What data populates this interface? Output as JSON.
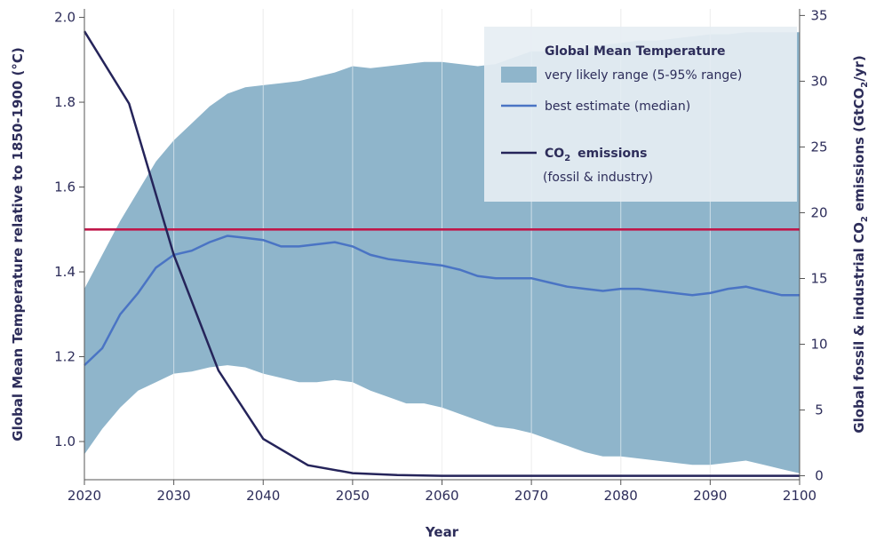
{
  "chart_data": {
    "type": "line",
    "xlabel": "Year",
    "ylabel": "Global Mean Temperature relative to 1850-1900 (°C)",
    "ylabel_right": {
      "base": "Global fossil & industrial CO",
      "sub": "2",
      "mid": " emissions (GtCO",
      "sub2": "2",
      "end": "/yr)"
    },
    "xlim": [
      2020,
      2100
    ],
    "ylim": [
      0.91,
      2.02
    ],
    "ylim_right": [
      -0.3,
      35.5
    ],
    "x_ticks": [
      "2020",
      "2030",
      "2040",
      "2050",
      "2060",
      "2070",
      "2080",
      "2090",
      "2100"
    ],
    "y_ticks": [
      "1.0",
      "1.2",
      "1.4",
      "1.6",
      "1.8",
      "2.0"
    ],
    "y_ticks_right": [
      "0",
      "5",
      "10",
      "15",
      "20",
      "25",
      "30",
      "35"
    ],
    "grid": "vertical",
    "threshold": {
      "value": 1.5,
      "color": "#c0174a"
    },
    "legend": {
      "placement": "top-right",
      "title": "Global Mean Temperature",
      "range_label": "very likely range (5-95% range)",
      "median_label": "best estimate (median)",
      "co2_label_base": "CO",
      "co2_label_sub": "2",
      "co2_label_rest": "emissions",
      "co2_label_line2": "(fossil & industry)"
    },
    "colors": {
      "band": "#8fb5cb",
      "median": "#4a74c4",
      "co2": "#25245a",
      "text": "#2d2d5a"
    },
    "series": [
      {
        "kind": "band",
        "x": [
          2020,
          2022,
          2024,
          2026,
          2028,
          2030,
          2032,
          2034,
          2036,
          2038,
          2040,
          2042,
          2044,
          2046,
          2048,
          2050,
          2052,
          2054,
          2056,
          2058,
          2060,
          2062,
          2064,
          2066,
          2068,
          2070,
          2072,
          2074,
          2076,
          2078,
          2080,
          2082,
          2084,
          2086,
          2088,
          2090,
          2092,
          2094,
          2096,
          2098,
          2100
        ],
        "lower": [
          0.97,
          1.03,
          1.08,
          1.12,
          1.14,
          1.16,
          1.165,
          1.175,
          1.18,
          1.175,
          1.16,
          1.15,
          1.14,
          1.14,
          1.145,
          1.14,
          1.12,
          1.105,
          1.09,
          1.09,
          1.08,
          1.065,
          1.05,
          1.035,
          1.03,
          1.02,
          1.005,
          0.99,
          0.975,
          0.965,
          0.965,
          0.96,
          0.955,
          0.95,
          0.945,
          0.945,
          0.95,
          0.955,
          0.945,
          0.935,
          0.925
        ],
        "upper": [
          1.36,
          1.44,
          1.52,
          1.59,
          1.66,
          1.71,
          1.75,
          1.79,
          1.82,
          1.835,
          1.84,
          1.845,
          1.85,
          1.86,
          1.87,
          1.885,
          1.88,
          1.885,
          1.89,
          1.895,
          1.895,
          1.89,
          1.885,
          1.89,
          1.905,
          1.92,
          1.92,
          1.92,
          1.925,
          1.935,
          1.94,
          1.945,
          1.945,
          1.95,
          1.955,
          1.96,
          1.96,
          1.965,
          1.965,
          1.965,
          1.965
        ]
      },
      {
        "kind": "median",
        "name": "best estimate (median)",
        "x": [
          2020,
          2022,
          2024,
          2026,
          2028,
          2030,
          2032,
          2034,
          2036,
          2038,
          2040,
          2042,
          2044,
          2046,
          2048,
          2050,
          2052,
          2054,
          2056,
          2058,
          2060,
          2062,
          2064,
          2066,
          2068,
          2070,
          2072,
          2074,
          2076,
          2078,
          2080,
          2082,
          2084,
          2086,
          2088,
          2090,
          2092,
          2094,
          2096,
          2098,
          2100
        ],
        "values": [
          1.18,
          1.22,
          1.3,
          1.35,
          1.41,
          1.44,
          1.45,
          1.47,
          1.485,
          1.48,
          1.475,
          1.46,
          1.46,
          1.465,
          1.47,
          1.46,
          1.44,
          1.43,
          1.425,
          1.42,
          1.415,
          1.405,
          1.39,
          1.385,
          1.385,
          1.385,
          1.375,
          1.365,
          1.36,
          1.355,
          1.36,
          1.36,
          1.355,
          1.35,
          1.345,
          1.35,
          1.36,
          1.365,
          1.355,
          1.345,
          1.345
        ]
      },
      {
        "kind": "co2",
        "name": "CO2 emissions",
        "axis": "right",
        "x": [
          2020,
          2025,
          2030,
          2035,
          2040,
          2045,
          2050,
          2055,
          2060,
          2070,
          2080,
          2090,
          2100
        ],
        "values": [
          33.8,
          28.3,
          16.8,
          8.0,
          2.8,
          0.8,
          0.2,
          0.05,
          0.0,
          0.0,
          0.0,
          0.0,
          0.0
        ]
      }
    ]
  }
}
